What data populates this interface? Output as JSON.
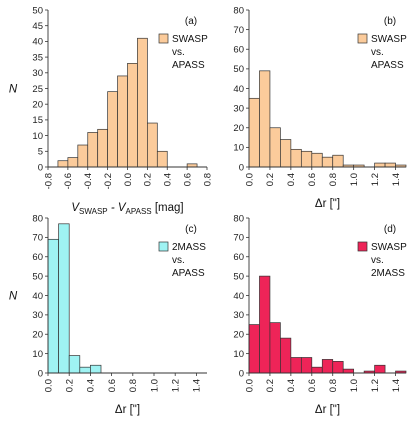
{
  "chart_data": [
    {
      "type": "bar",
      "panel_label": "(a)",
      "legend": [
        "SWASP",
        "vs.",
        "APASS"
      ],
      "color": "#FBCB9B",
      "edge": "#333333",
      "bin_edges": [
        -0.7,
        -0.6,
        -0.5,
        -0.4,
        -0.3,
        -0.2,
        -0.1,
        0.0,
        0.1,
        0.2,
        0.3,
        0.4,
        0.5,
        0.6
      ],
      "values": [
        2,
        3,
        7,
        11,
        12,
        24,
        29,
        33,
        41,
        14,
        5,
        0,
        0,
        1
      ],
      "xlim": [
        -0.8,
        0.8
      ],
      "ylim": [
        0,
        50
      ],
      "yticks": [
        "0",
        "5",
        "10",
        "15",
        "20",
        "25",
        "30",
        "35",
        "40",
        "45",
        "50"
      ],
      "xticks": [
        "-0.8",
        "-0.6",
        "-0.4",
        "-0.2",
        "0.0",
        "0.2",
        "0.4",
        "0.6",
        "0.8"
      ],
      "ylabel": "N",
      "xlabel_main": "V",
      "xlabel_sub1": "SWASP",
      "xlabel_mid": " - V",
      "xlabel_sub2": "APASS",
      "xlabel_unit": "  [mag]"
    },
    {
      "type": "bar",
      "panel_label": "(b)",
      "legend": [
        "SWASP",
        "vs.",
        "APASS"
      ],
      "color": "#FBCB9B",
      "edge": "#333333",
      "bin_edges": [
        0.0,
        0.1,
        0.2,
        0.3,
        0.4,
        0.5,
        0.6,
        0.7,
        0.8,
        0.9,
        1.0,
        1.1,
        1.2,
        1.3,
        1.4
      ],
      "values": [
        35,
        49,
        20,
        14,
        9,
        8,
        7,
        5,
        6,
        1,
        1,
        0,
        2,
        2,
        1
      ],
      "xlim": [
        0.0,
        1.5
      ],
      "ylim": [
        0,
        80
      ],
      "yticks": [
        "0",
        "10",
        "20",
        "30",
        "40",
        "50",
        "60",
        "70",
        "80"
      ],
      "xticks": [
        "0.0",
        "0.2",
        "0.4",
        "0.6",
        "0.8",
        "1.0",
        "1.2",
        "1.4"
      ],
      "ylabel": "",
      "xlabel": "Δr  [\"]"
    },
    {
      "type": "bar",
      "panel_label": "(c)",
      "legend": [
        "2MASS",
        "vs.",
        "APASS"
      ],
      "color": "#9FF3F3",
      "edge": "#333333",
      "bin_edges": [
        0.0,
        0.1,
        0.2,
        0.3,
        0.4
      ],
      "values": [
        69,
        77,
        9,
        3,
        4
      ],
      "xlim": [
        0.0,
        1.5
      ],
      "ylim": [
        0,
        80
      ],
      "yticks": [
        "0",
        "10",
        "20",
        "30",
        "40",
        "50",
        "60",
        "70",
        "80"
      ],
      "xticks": [
        "0.0",
        "0.2",
        "0.4",
        "0.6",
        "0.8",
        "1.0",
        "1.2",
        "1.4"
      ],
      "ylabel": "N",
      "xlabel": "Δr  [\"]"
    },
    {
      "type": "bar",
      "panel_label": "(d)",
      "legend": [
        "SWASP",
        "vs.",
        "2MASS"
      ],
      "color": "#EE2458",
      "edge": "#333333",
      "bin_edges": [
        0.0,
        0.1,
        0.2,
        0.3,
        0.4,
        0.5,
        0.6,
        0.7,
        0.8,
        0.9,
        1.0,
        1.1,
        1.2,
        1.3,
        1.4
      ],
      "values": [
        25,
        50,
        26,
        18,
        8,
        8,
        3,
        7,
        6,
        2,
        0,
        1,
        4,
        0,
        1
      ],
      "xlim": [
        0.0,
        1.5
      ],
      "ylim": [
        0,
        80
      ],
      "yticks": [
        "0",
        "10",
        "20",
        "30",
        "40",
        "50",
        "60",
        "70",
        "80"
      ],
      "xticks": [
        "0.0",
        "0.2",
        "0.4",
        "0.6",
        "0.8",
        "1.0",
        "1.2",
        "1.4"
      ],
      "ylabel": "",
      "xlabel": "Δr  [\"]"
    }
  ]
}
